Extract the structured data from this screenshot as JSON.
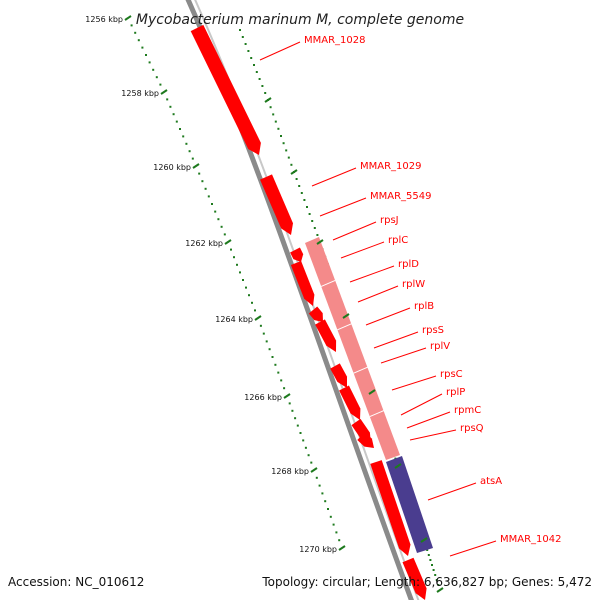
{
  "title": "Mycobacterium marinum M, complete genome",
  "footer": {
    "accession": "Accession: NC_010612",
    "topology": "Topology: circular; Length: 6,636,827 bp; Genes: 5,472"
  },
  "colors": {
    "background": "#ffffff",
    "backbone": "#8a8a8a",
    "gene_forward": "#ff0000",
    "gene_operon": "#f48a8a",
    "gene_other": "#4a3d8f",
    "label": "#ff0000",
    "tick": "#1e7a1e"
  },
  "ticks": [
    "1256 kbp",
    "1258 kbp",
    "1260 kbp",
    "1262 kbp",
    "1264 kbp",
    "1266 kbp",
    "1268 kbp",
    "1270 kbp"
  ],
  "genes": [
    {
      "name": "MMAR_1028"
    },
    {
      "name": "MMAR_1029"
    },
    {
      "name": "MMAR_5549"
    },
    {
      "name": "rpsJ"
    },
    {
      "name": "rplC"
    },
    {
      "name": "rplD"
    },
    {
      "name": "rplW"
    },
    {
      "name": "rplB"
    },
    {
      "name": "rpsS"
    },
    {
      "name": "rplV"
    },
    {
      "name": "rpsC"
    },
    {
      "name": "rplP"
    },
    {
      "name": "rpmC"
    },
    {
      "name": "rpsQ"
    },
    {
      "name": "atsA"
    },
    {
      "name": "MMAR_1042"
    }
  ]
}
